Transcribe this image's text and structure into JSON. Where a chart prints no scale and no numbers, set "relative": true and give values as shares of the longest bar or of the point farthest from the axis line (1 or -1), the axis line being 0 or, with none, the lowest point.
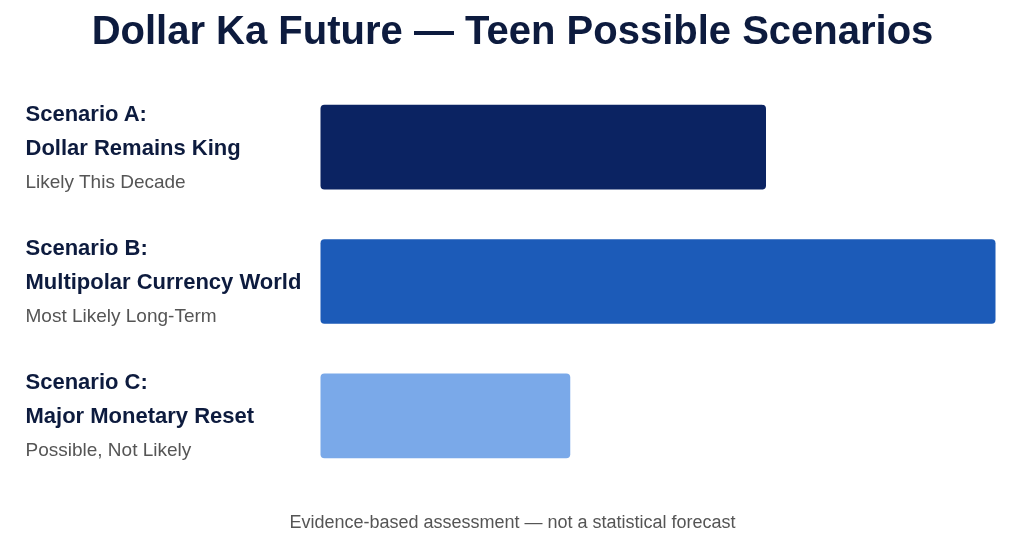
{
  "chart_data": {
    "type": "bar",
    "orientation": "horizontal",
    "relative": true,
    "title": "Dollar Ka Future — Teen Possible Scenarios",
    "categories": [
      "Scenario A:\nDollar Remains King\nLikely This Decade",
      "Scenario B:\nMultipolar Currency World\nMost Likely Long-Term",
      "Scenario C:\nMajor Monetary Reset\nPossible, Not Likely"
    ],
    "values": [
      0.66,
      1,
      0.37
    ],
    "colors": [
      "#0b2362",
      "#1c5bb8",
      "#7aa9e9"
    ],
    "annotations": [
      "Evidence-based assessment — not a statistical forecast"
    ],
    "grid": false
  }
}
